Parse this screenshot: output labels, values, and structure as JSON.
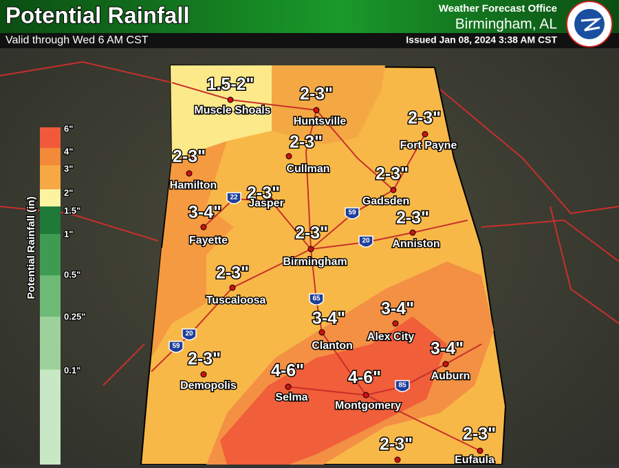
{
  "header": {
    "title": "Potential Rainfall",
    "subtitle": "Valid through Wed 6 AM CST",
    "office": "Weather Forecast Office",
    "location": "Birmingham, AL",
    "issued": "Issued Jan 08, 2024 3:38 AM CST"
  },
  "legend": {
    "title": "Potential Rainfall (in)",
    "labels": [
      "6\"",
      "4\"",
      "3\"",
      "2\"",
      "1.5\"",
      "1\"",
      "0.5\"",
      "0.25\"",
      "0.1\""
    ]
  },
  "cities": [
    {
      "name": "Muscle Shoals",
      "amount": "1.5-2\""
    },
    {
      "name": "Huntsville",
      "amount": "2-3\""
    },
    {
      "name": "Fort Payne",
      "amount": "2-3\""
    },
    {
      "name": "Cullman",
      "amount": "2-3\""
    },
    {
      "name": "Hamilton",
      "amount": "2-3\""
    },
    {
      "name": "Jasper",
      "amount": "2-3\""
    },
    {
      "name": "Gadsden",
      "amount": "2-3\""
    },
    {
      "name": "Fayette",
      "amount": "3-4\""
    },
    {
      "name": "Anniston",
      "amount": "2-3\""
    },
    {
      "name": "Birmingham",
      "amount": "2-3\""
    },
    {
      "name": "Tuscaloosa",
      "amount": "2-3\""
    },
    {
      "name": "Clanton",
      "amount": "3-4\""
    },
    {
      "name": "Alex City",
      "amount": "3-4\""
    },
    {
      "name": "Auburn",
      "amount": "3-4\""
    },
    {
      "name": "Demopolis",
      "amount": "2-3\""
    },
    {
      "name": "Selma",
      "amount": "4-6\""
    },
    {
      "name": "Montgomery",
      "amount": "4-6\""
    },
    {
      "amount": "2-3\""
    },
    {
      "name": "Eufaula",
      "amount": "2-3\""
    }
  ],
  "interstates": [
    "22",
    "59",
    "20",
    "65",
    "20",
    "59",
    "85"
  ]
}
